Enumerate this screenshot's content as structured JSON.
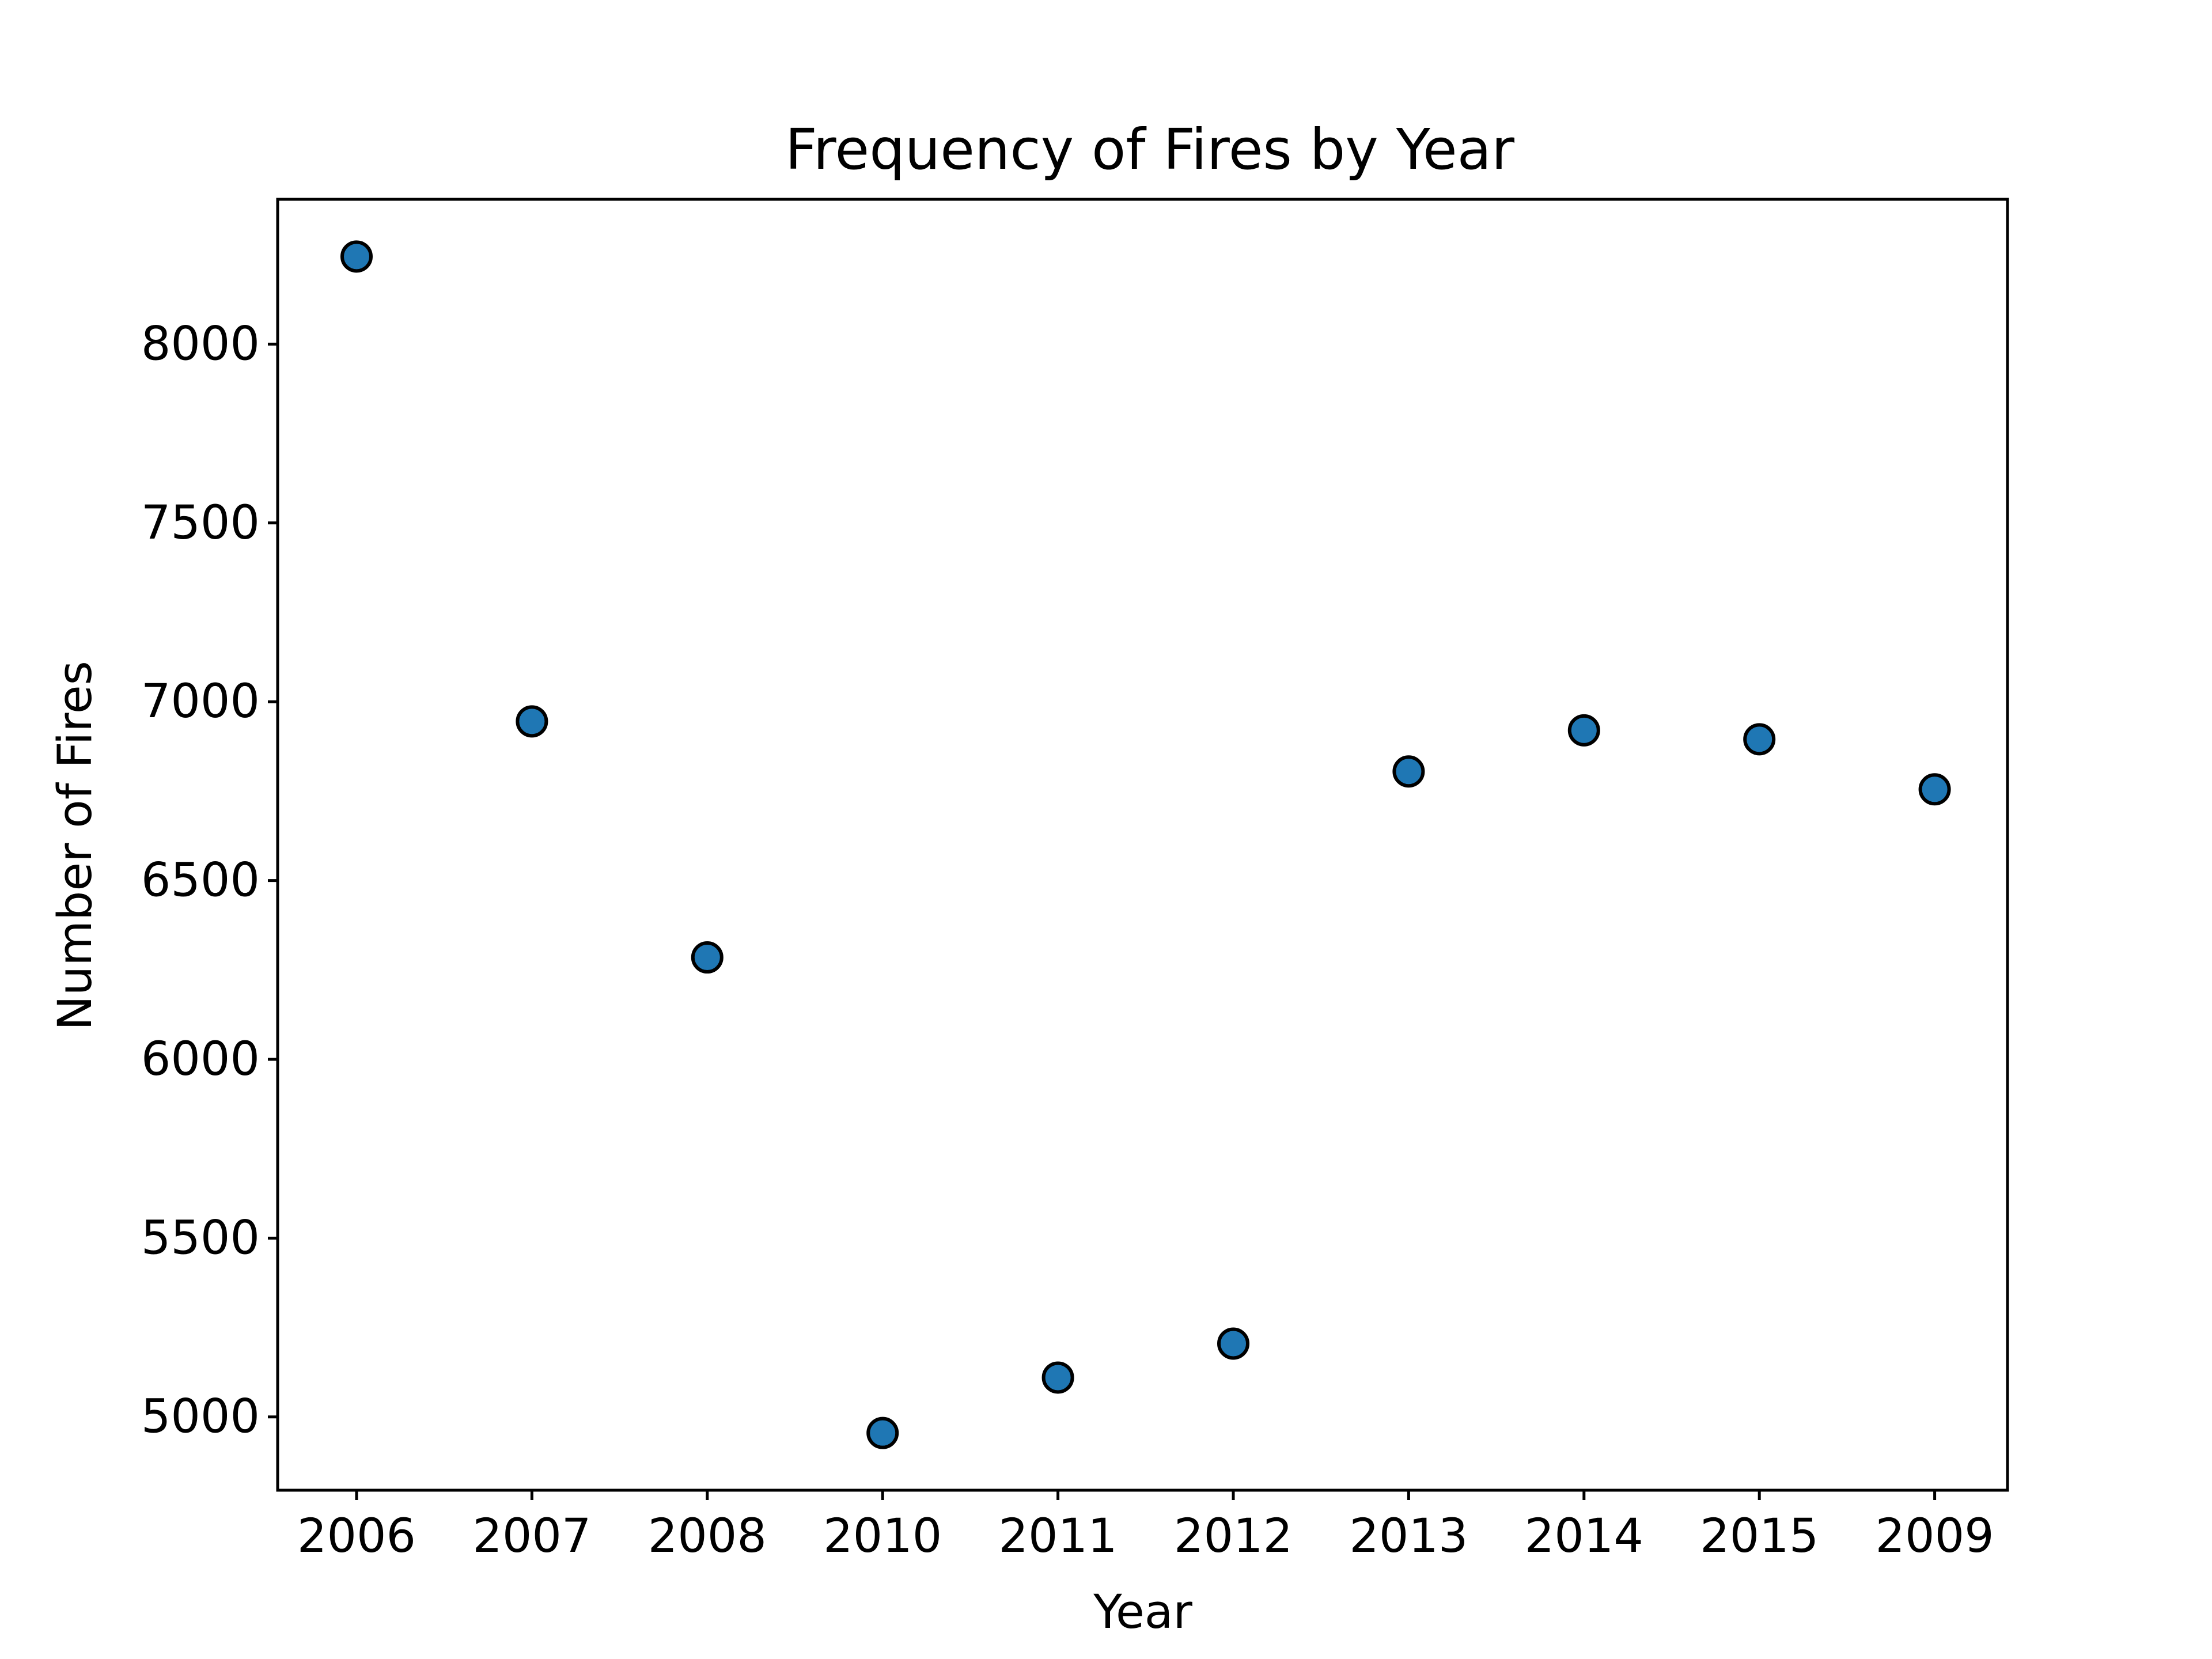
{
  "chart_data": {
    "type": "scatter",
    "title": "Frequency of Fires by Year",
    "xlabel": "Year",
    "ylabel": "Number of Fires",
    "categories": [
      "2006",
      "2007",
      "2008",
      "2010",
      "2011",
      "2012",
      "2013",
      "2014",
      "2015",
      "2009"
    ],
    "values": [
      8245,
      6945,
      6285,
      4955,
      5110,
      5205,
      6805,
      6920,
      6895,
      6755
    ],
    "ylim": [
      4795,
      8405
    ],
    "yticks": [
      5000,
      5500,
      6000,
      6500,
      7000,
      7500,
      8000
    ],
    "grid": false,
    "legend": "none",
    "colors": {
      "marker_fill": "#1f77b4",
      "marker_edge": "#000000",
      "axes": "#000000"
    }
  }
}
